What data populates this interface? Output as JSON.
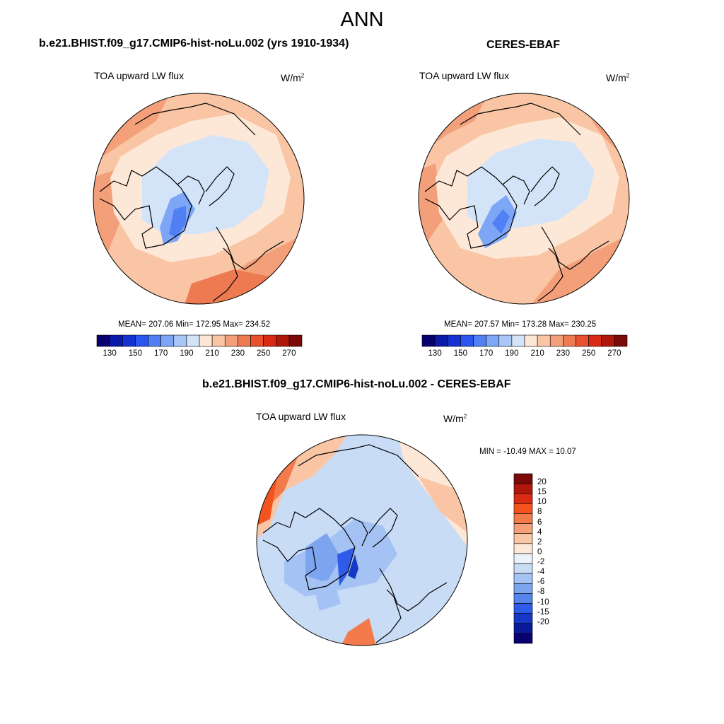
{
  "figure_title": "ANN",
  "panels": [
    {
      "title": "b.e21.BHIST.f09_g17.CMIP6-hist-noLu.002 (yrs 1910-1934)",
      "variable": "TOA upward LW flux",
      "units": "W/m",
      "units_sup": "2",
      "stats": "MEAN= 207.06  Min= 172.95  Max= 234.52",
      "mean": 207.06,
      "min": 172.95,
      "max": 234.52
    },
    {
      "title": "CERES-EBAF",
      "variable": "TOA upward LW flux",
      "units": "W/m",
      "units_sup": "2",
      "stats": "MEAN= 207.57  Min= 173.28  Max= 230.25",
      "mean": 207.57,
      "min": 173.28,
      "max": 230.25
    },
    {
      "title": "b.e21.BHIST.f09_g17.CMIP6-hist-noLu.002 - CERES-EBAF",
      "variable": "TOA upward LW flux",
      "units": "W/m",
      "units_sup": "2",
      "stats": "MIN = -10.49 MAX =  10.07",
      "min": -10.49,
      "max": 10.07
    }
  ],
  "colorbar_abs": {
    "colors": [
      "#08006e",
      "#0a1aa8",
      "#1432d2",
      "#2a55ee",
      "#5080f4",
      "#7ea6f6",
      "#a9c6f7",
      "#d3e4f8",
      "#fde7d6",
      "#f9c5a5",
      "#f3a07a",
      "#ee7a52",
      "#e8502e",
      "#d92a13",
      "#b0170c",
      "#7a0907"
    ],
    "tick_labels": [
      "130",
      "150",
      "170",
      "190",
      "210",
      "230",
      "250",
      "270"
    ]
  },
  "colorbar_diff": {
    "colors_top_to_bottom": [
      "#7a0907",
      "#b0170c",
      "#d92a13",
      "#f2531f",
      "#f37a4a",
      "#f6a07a",
      "#f9c5a5",
      "#fde7d6",
      "#eaf2fb",
      "#c9dcf6",
      "#a4c2f3",
      "#7da5ef",
      "#5683ec",
      "#2e5ce8",
      "#1638c6",
      "#0a1a9a",
      "#08006e"
    ],
    "tick_labels": [
      "20",
      "15",
      "10",
      "8",
      "6",
      "4",
      "2",
      "0",
      "-2",
      "-4",
      "-6",
      "-8",
      "-10",
      "-15",
      "-20"
    ]
  }
}
